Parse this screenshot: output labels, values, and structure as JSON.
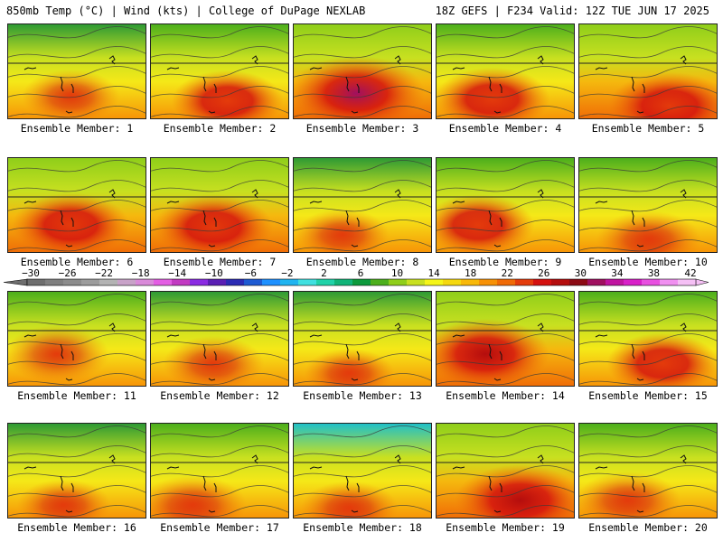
{
  "header": {
    "left": "850mb Temp (°C) | Wind (kts) | College of DuPage NEXLAB",
    "right": "18Z GEFS | F234 Valid: 12Z TUE JUN 17 2025"
  },
  "caption_prefix": "Ensemble Member: ",
  "members": [
    {
      "n": "1",
      "warmth": 0.35,
      "hot_x": 0.45,
      "hot_y": 0.75
    },
    {
      "n": "2",
      "warmth": 0.55,
      "hot_x": 0.55,
      "hot_y": 0.8
    },
    {
      "n": "3",
      "warmth": 0.9,
      "hot_x": 0.45,
      "hot_y": 0.72
    },
    {
      "n": "4",
      "warmth": 0.6,
      "hot_x": 0.4,
      "hot_y": 0.78
    },
    {
      "n": "5",
      "warmth": 0.7,
      "hot_x": 0.65,
      "hot_y": 0.85
    },
    {
      "n": "6",
      "warmth": 0.62,
      "hot_x": 0.45,
      "hot_y": 0.7
    },
    {
      "n": "7",
      "warmth": 0.65,
      "hot_x": 0.45,
      "hot_y": 0.72
    },
    {
      "n": "8",
      "warmth": 0.3,
      "hot_x": 0.35,
      "hot_y": 0.8
    },
    {
      "n": "9",
      "warmth": 0.55,
      "hot_x": 0.3,
      "hot_y": 0.7
    },
    {
      "n": "10",
      "warmth": 0.45,
      "hot_x": 0.5,
      "hot_y": 0.85
    },
    {
      "n": "11",
      "warmth": 0.45,
      "hot_x": 0.35,
      "hot_y": 0.65
    },
    {
      "n": "12",
      "warmth": 0.4,
      "hot_x": 0.45,
      "hot_y": 0.75
    },
    {
      "n": "13",
      "warmth": 0.25,
      "hot_x": 0.4,
      "hot_y": 0.85
    },
    {
      "n": "14",
      "warmth": 0.78,
      "hot_x": 0.35,
      "hot_y": 0.65
    },
    {
      "n": "15",
      "warmth": 0.55,
      "hot_x": 0.6,
      "hot_y": 0.75
    },
    {
      "n": "16",
      "warmth": 0.3,
      "hot_x": 0.4,
      "hot_y": 0.85
    },
    {
      "n": "17",
      "warmth": 0.5,
      "hot_x": 0.3,
      "hot_y": 0.85
    },
    {
      "n": "18",
      "warmth": 0.35,
      "hot_x": 0.4,
      "hot_y": 0.88
    },
    {
      "n": "19",
      "warmth": 0.8,
      "hot_x": 0.6,
      "hot_y": 0.8
    },
    {
      "n": "20",
      "warmth": 0.45,
      "hot_x": 0.35,
      "hot_y": 0.8
    }
  ],
  "colorbar": {
    "labels": [
      "−30",
      "−26",
      "−22",
      "−18",
      "−14",
      "−10",
      "−6",
      "−2",
      "2",
      "6",
      "10",
      "14",
      "18",
      "22",
      "26",
      "30",
      "34",
      "38",
      "42"
    ],
    "colors": [
      "#6e6e6e",
      "#7f7f7f",
      "#8c8c8c",
      "#9c9c9c",
      "#b3b3b3",
      "#c8a2c8",
      "#d98ad9",
      "#e35ee3",
      "#c23ac2",
      "#8a2be2",
      "#5a1fb4",
      "#2b2bb4",
      "#1e5ad2",
      "#1e90ff",
      "#20b4f0",
      "#40e0e0",
      "#20d2a8",
      "#10b478",
      "#0c9a3c",
      "#4caf1c",
      "#8fce1a",
      "#c8e020",
      "#f5f518",
      "#f5d80e",
      "#f8b808",
      "#f79106",
      "#f06a06",
      "#e43b0b",
      "#d4100e",
      "#b40d0d",
      "#8c0a14",
      "#a01060",
      "#c014a0",
      "#d820c8",
      "#e850e0",
      "#f090f0",
      "#f5c0f5"
    ]
  }
}
